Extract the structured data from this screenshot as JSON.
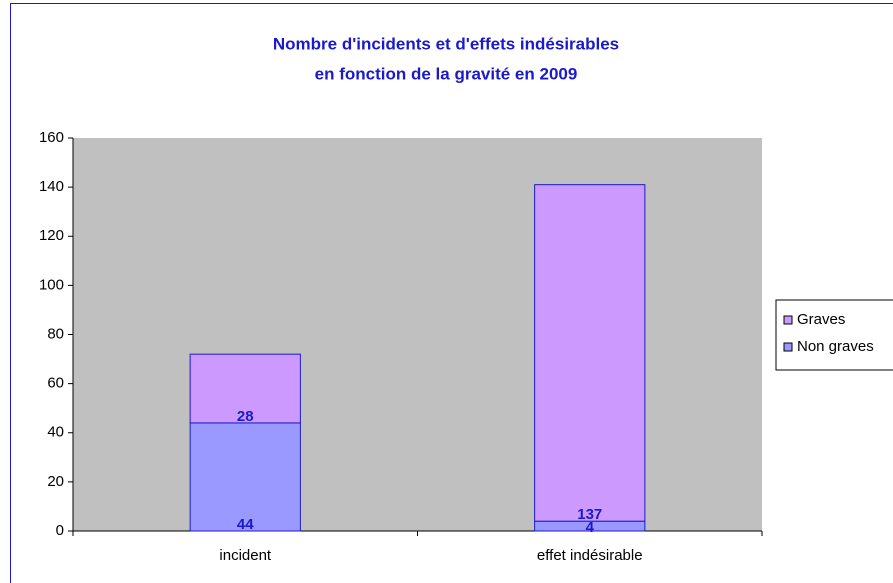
{
  "chart_data": {
    "type": "stacked_bar",
    "title": [
      "Nombre d'incidents et d'effets indésirables",
      "en fonction de la gravité en 2009"
    ],
    "categories": [
      "incident",
      "effet indésirable"
    ],
    "series": [
      {
        "name": "Non graves",
        "color": "#9999ff",
        "values": [
          44,
          4
        ]
      },
      {
        "name": "Graves",
        "color": "#cc99ff",
        "values": [
          28,
          137
        ]
      }
    ],
    "ylim": [
      0,
      160
    ],
    "yticks": [
      0,
      20,
      40,
      60,
      80,
      100,
      120,
      140,
      160
    ],
    "plot_background": "#c0c0c0",
    "legend": "right"
  }
}
